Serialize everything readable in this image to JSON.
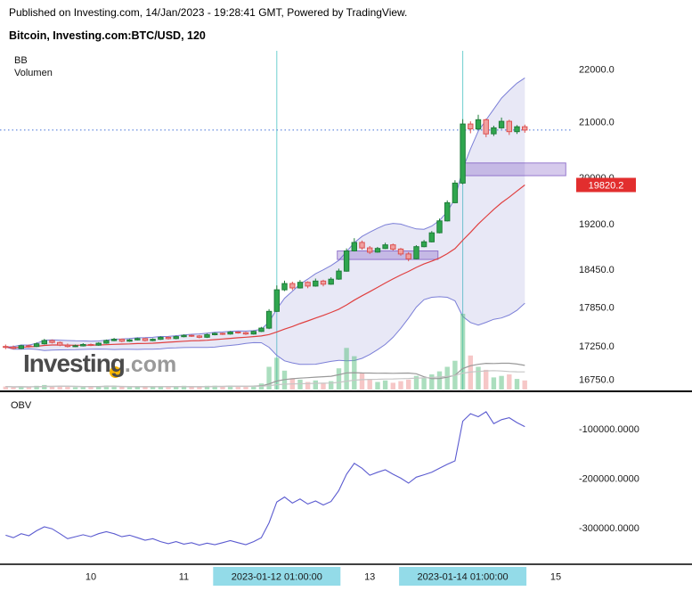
{
  "header": {
    "published_line": "Published on Investing.com, 14/Jan/2023 - 19:28:41 GMT, Powered by TradingView.",
    "instrument_line": "Bitcoin, Investing.com:BTC/USD, 120"
  },
  "watermark": {
    "brand": "Investing",
    "suffix": ".com"
  },
  "panels": {
    "main": {
      "bb_label": "BB",
      "volume_label": "Volumen"
    },
    "obv": {
      "label": "OBV"
    }
  },
  "price_badge": {
    "value": "19820.2"
  },
  "colors": {
    "up_fill": "#2fa64e",
    "up_stroke": "#1e7d39",
    "down_fill": "#f0a0a0",
    "down_stroke": "#dd5050",
    "vol_up": "rgba(88,189,125,0.5)",
    "vol_down": "rgba(235,130,130,0.45)",
    "bb_line": "#7b7fd7",
    "bb_fill": "rgba(115,110,200,0.16)",
    "bb_mid": "#e04040",
    "obv_line": "#5b5bd0",
    "event_line": "#6fd0d0",
    "zone_fill": "rgba(106,66,185,0.28)",
    "zone_stroke": "rgba(106,66,185,0.65)",
    "last_price_line": "#4472d8",
    "badge_bg": "#e22e2e",
    "badge_text": "#ffffff",
    "highlight_bg": "#93dbe8",
    "axis_text": "#1a1a1a",
    "vol_ma": "#999999",
    "vol_ma2": "#c6c6c6",
    "watermark_dot": "#f7b500",
    "separator": "#000000"
  },
  "chart_data": [
    {
      "type": "candlestick",
      "name": "BTC/USD 120",
      "scale": "log",
      "ylim": [
        16600,
        22300
      ],
      "y_ticks": [
        22000,
        21000,
        20000,
        19200,
        18450,
        17850,
        17250,
        16750
      ],
      "x_ticks": [
        {
          "label": "10",
          "i": 11
        },
        {
          "label": "11",
          "i": 23
        },
        {
          "label": "2023-01-12 01:00:00",
          "i": 35,
          "highlight": true
        },
        {
          "label": "13",
          "i": 47
        },
        {
          "label": "2023-01-14 01:00:00",
          "i": 59,
          "highlight": true
        },
        {
          "label": "15",
          "i": 71
        }
      ],
      "event_lines": [
        {
          "i": 35
        },
        {
          "i": 59
        }
      ],
      "zones": [
        {
          "i0": 59,
          "i1": 72.3,
          "top": 20255,
          "bottom": 20030
        },
        {
          "i0": 42.8,
          "i1": 55.8,
          "top": 18750,
          "bottom": 18610
        }
      ],
      "last_price": 20850,
      "overlays": {
        "bollinger_period": 20,
        "bollinger_stddev": 2,
        "volume_ma_period": 10
      },
      "candles": [
        [
          17240,
          17270,
          17200,
          17230,
          4
        ],
        [
          17230,
          17255,
          17195,
          17210,
          3
        ],
        [
          17210,
          17265,
          17200,
          17250,
          4
        ],
        [
          17250,
          17270,
          17225,
          17240,
          3
        ],
        [
          17240,
          17300,
          17230,
          17280,
          5
        ],
        [
          17280,
          17355,
          17270,
          17330,
          6
        ],
        [
          17330,
          17345,
          17285,
          17300,
          4
        ],
        [
          17300,
          17315,
          17245,
          17260,
          5
        ],
        [
          17260,
          17285,
          17225,
          17240,
          4
        ],
        [
          17240,
          17270,
          17230,
          17250,
          3
        ],
        [
          17250,
          17290,
          17240,
          17270,
          3
        ],
        [
          17270,
          17285,
          17245,
          17260,
          3
        ],
        [
          17260,
          17305,
          17250,
          17290,
          4
        ],
        [
          17290,
          17345,
          17280,
          17330,
          5
        ],
        [
          17330,
          17370,
          17320,
          17350,
          5
        ],
        [
          17350,
          17360,
          17305,
          17320,
          4
        ],
        [
          17320,
          17355,
          17310,
          17340,
          3
        ],
        [
          17340,
          17375,
          17330,
          17360,
          4
        ],
        [
          17360,
          17370,
          17315,
          17330,
          4
        ],
        [
          17330,
          17365,
          17320,
          17350,
          3
        ],
        [
          17350,
          17395,
          17340,
          17380,
          4
        ],
        [
          17380,
          17390,
          17345,
          17360,
          3
        ],
        [
          17360,
          17405,
          17350,
          17390,
          4
        ],
        [
          17390,
          17425,
          17380,
          17410,
          5
        ],
        [
          17410,
          17420,
          17385,
          17400,
          4
        ],
        [
          17400,
          17415,
          17365,
          17380,
          4
        ],
        [
          17380,
          17435,
          17370,
          17420,
          5
        ],
        [
          17420,
          17455,
          17410,
          17440,
          5
        ],
        [
          17440,
          17450,
          17415,
          17430,
          4
        ],
        [
          17430,
          17475,
          17420,
          17460,
          5
        ],
        [
          17460,
          17470,
          17435,
          17450,
          4
        ],
        [
          17450,
          17465,
          17415,
          17430,
          4
        ],
        [
          17430,
          17485,
          17420,
          17470,
          5
        ],
        [
          17470,
          17540,
          17460,
          17520,
          8
        ],
        [
          17520,
          17815,
          17505,
          17780,
          30
        ],
        [
          17780,
          18190,
          17770,
          18120,
          42
        ],
        [
          18120,
          18265,
          18100,
          18220,
          25
        ],
        [
          18220,
          18250,
          18115,
          18150,
          15
        ],
        [
          18150,
          18275,
          18140,
          18240,
          13
        ],
        [
          18240,
          18255,
          18145,
          18180,
          10
        ],
        [
          18180,
          18300,
          18170,
          18260,
          12
        ],
        [
          18260,
          18280,
          18175,
          18210,
          9
        ],
        [
          18210,
          18320,
          18200,
          18290,
          11
        ],
        [
          18290,
          18460,
          18280,
          18420,
          28
        ],
        [
          18420,
          18790,
          18410,
          18750,
          55
        ],
        [
          18750,
          18960,
          18740,
          18890,
          44
        ],
        [
          18890,
          18920,
          18770,
          18800,
          22
        ],
        [
          18800,
          18830,
          18700,
          18730,
          14
        ],
        [
          18730,
          18815,
          18720,
          18790,
          10
        ],
        [
          18790,
          18885,
          18780,
          18850,
          12
        ],
        [
          18850,
          18870,
          18755,
          18780,
          9
        ],
        [
          18780,
          18800,
          18670,
          18700,
          11
        ],
        [
          18700,
          18730,
          18580,
          18620,
          13
        ],
        [
          18620,
          18845,
          18610,
          18820,
          18
        ],
        [
          18820,
          18930,
          18810,
          18900,
          15
        ],
        [
          18900,
          19080,
          18890,
          19050,
          20
        ],
        [
          19050,
          19290,
          19040,
          19250,
          24
        ],
        [
          19250,
          19600,
          19240,
          19560,
          30
        ],
        [
          19560,
          19950,
          19550,
          19900,
          38
        ],
        [
          19900,
          21050,
          19880,
          20960,
          100
        ],
        [
          20960,
          21010,
          20790,
          20870,
          45
        ],
        [
          20870,
          21130,
          20850,
          21040,
          30
        ],
        [
          21040,
          21060,
          20720,
          20780,
          26
        ],
        [
          20780,
          20930,
          20740,
          20890,
          16
        ],
        [
          20890,
          21080,
          20870,
          21010,
          18
        ],
        [
          21010,
          21040,
          20760,
          20820,
          20
        ],
        [
          20820,
          20940,
          20780,
          20910,
          14
        ],
        [
          20910,
          20950,
          20800,
          20850,
          12
        ]
      ]
    },
    {
      "type": "line",
      "name": "OBV",
      "ylim": [
        -370000,
        -32000
      ],
      "y_ticks": [
        -100000,
        -200000,
        -300000
      ],
      "values": [
        -315000,
        -320000,
        -312000,
        -316000,
        -306000,
        -298000,
        -302000,
        -312000,
        -322000,
        -318000,
        -314000,
        -318000,
        -312000,
        -308000,
        -312000,
        -318000,
        -315000,
        -320000,
        -325000,
        -322000,
        -328000,
        -332000,
        -328000,
        -333000,
        -330000,
        -335000,
        -331000,
        -334000,
        -330000,
        -326000,
        -330000,
        -334000,
        -328000,
        -320000,
        -290000,
        -248000,
        -238000,
        -250000,
        -242000,
        -252000,
        -246000,
        -254000,
        -247000,
        -225000,
        -192000,
        -170000,
        -180000,
        -194000,
        -188000,
        -183000,
        -192000,
        -200000,
        -210000,
        -198000,
        -193000,
        -188000,
        -180000,
        -172000,
        -165000,
        -85000,
        -70000,
        -76000,
        -66000,
        -90000,
        -82000,
        -78000,
        -88000,
        -96000
      ]
    }
  ]
}
